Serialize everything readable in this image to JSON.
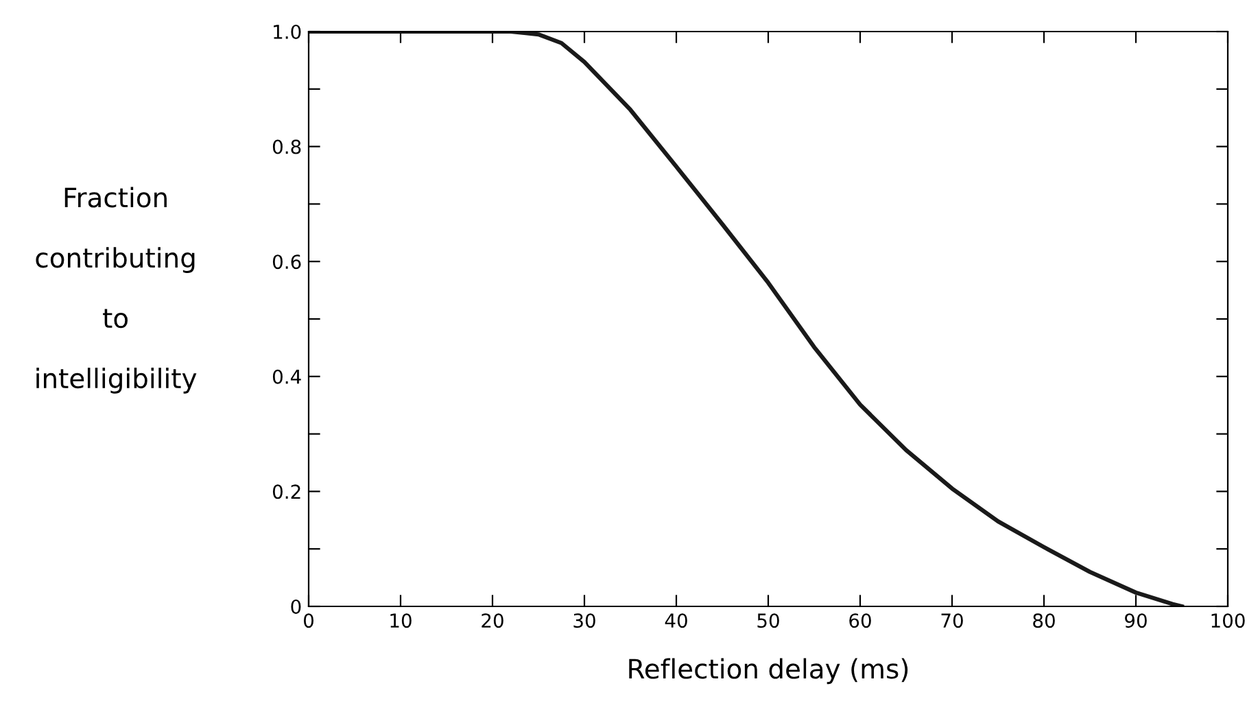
{
  "chart_data": {
    "type": "line",
    "xlabel": "Reflection delay (ms)",
    "ylabel": "Fraction\ncontributing\nto\nintelligibility",
    "x": [
      0,
      22,
      25,
      27.5,
      30,
      35,
      40,
      45,
      50,
      55,
      60,
      65,
      70,
      75,
      80,
      85,
      90,
      94,
      95
    ],
    "series": [
      {
        "color": "#1a1a1a",
        "values": [
          1.0,
          1.0,
          0.995,
          0.98,
          0.947,
          0.864,
          0.765,
          0.665,
          0.563,
          0.451,
          0.351,
          0.272,
          0.205,
          0.148,
          0.103,
          0.06,
          0.024,
          0.004,
          0
        ]
      }
    ],
    "xlim": [
      0,
      100
    ],
    "ylim": [
      0,
      1.0
    ],
    "xticks": [
      0,
      10,
      20,
      30,
      40,
      50,
      60,
      70,
      80,
      90,
      100
    ],
    "yticks": [
      {
        "value": 0,
        "label": "0"
      },
      {
        "value": 0.1,
        "label": null
      },
      {
        "value": 0.2,
        "label": "0.2"
      },
      {
        "value": 0.3,
        "label": null
      },
      {
        "value": 0.4,
        "label": "0.4"
      },
      {
        "value": 0.5,
        "label": null
      },
      {
        "value": 0.6,
        "label": "0.6"
      },
      {
        "value": 0.7,
        "label": null
      },
      {
        "value": 0.8,
        "label": "0.8"
      },
      {
        "value": 0.9,
        "label": null
      },
      {
        "value": 1.0,
        "label": "1.0"
      }
    ],
    "grid": false,
    "legend": false,
    "marker": "none",
    "line_style": "solid"
  }
}
